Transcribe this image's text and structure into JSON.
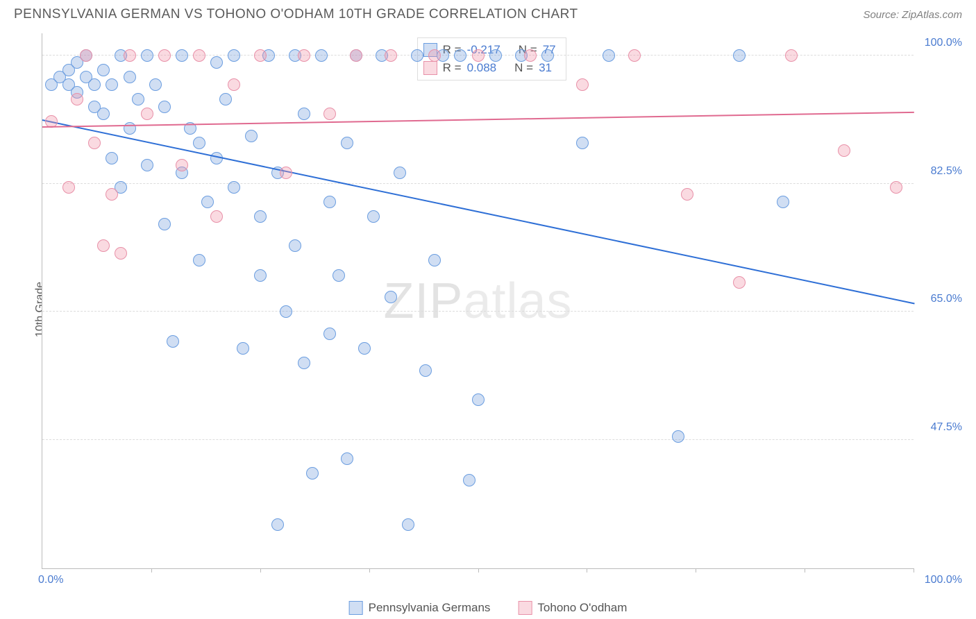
{
  "title": "PENNSYLVANIA GERMAN VS TOHONO O'ODHAM 10TH GRADE CORRELATION CHART",
  "source": "Source: ZipAtlas.com",
  "ylabel": "10th Grade",
  "watermark": {
    "bold": "ZIP",
    "rest": "atlas"
  },
  "chart": {
    "type": "scatter",
    "xlim": [
      0,
      100
    ],
    "ylim": [
      30,
      103
    ],
    "x_axis_label_left": "0.0%",
    "x_axis_label_right": "100.0%",
    "xtick_positions": [
      12.5,
      25,
      37.5,
      50,
      62.5,
      75,
      87.5,
      100
    ],
    "yticks": [
      {
        "v": 100.0,
        "label": "100.0%"
      },
      {
        "v": 82.5,
        "label": "82.5%"
      },
      {
        "v": 65.0,
        "label": "65.0%"
      },
      {
        "v": 47.5,
        "label": "47.5%"
      }
    ],
    "background_color": "#ffffff",
    "grid_color": "#dcdcdc",
    "series": [
      {
        "name": "Pennsylvania Germans",
        "fill": "rgba(120,160,220,0.35)",
        "stroke": "#6a9de0",
        "marker_radius": 9,
        "trend_color": "#2e6fd6",
        "trend": {
          "y_at_x0": 91,
          "y_at_x100": 66
        },
        "R": "-0.217",
        "N": "77",
        "points": [
          [
            1,
            96
          ],
          [
            2,
            97
          ],
          [
            3,
            98
          ],
          [
            3,
            96
          ],
          [
            4,
            99
          ],
          [
            4,
            95
          ],
          [
            5,
            97
          ],
          [
            5,
            100
          ],
          [
            6,
            96
          ],
          [
            6,
            93
          ],
          [
            7,
            98
          ],
          [
            7,
            92
          ],
          [
            8,
            96
          ],
          [
            8,
            86
          ],
          [
            9,
            100
          ],
          [
            9,
            82
          ],
          [
            10,
            97
          ],
          [
            10,
            90
          ],
          [
            11,
            94
          ],
          [
            12,
            100
          ],
          [
            12,
            85
          ],
          [
            13,
            96
          ],
          [
            14,
            93
          ],
          [
            14,
            77
          ],
          [
            15,
            61
          ],
          [
            16,
            100
          ],
          [
            16,
            84
          ],
          [
            17,
            90
          ],
          [
            18,
            88
          ],
          [
            18,
            72
          ],
          [
            19,
            80
          ],
          [
            20,
            99
          ],
          [
            20,
            86
          ],
          [
            21,
            94
          ],
          [
            22,
            100
          ],
          [
            22,
            82
          ],
          [
            23,
            60
          ],
          [
            24,
            89
          ],
          [
            25,
            78
          ],
          [
            25,
            70
          ],
          [
            26,
            100
          ],
          [
            27,
            84
          ],
          [
            27,
            36
          ],
          [
            28,
            65
          ],
          [
            29,
            100
          ],
          [
            29,
            74
          ],
          [
            30,
            92
          ],
          [
            30,
            58
          ],
          [
            31,
            43
          ],
          [
            32,
            100
          ],
          [
            33,
            62
          ],
          [
            33,
            80
          ],
          [
            34,
            70
          ],
          [
            35,
            88
          ],
          [
            35,
            45
          ],
          [
            36,
            100
          ],
          [
            37,
            60
          ],
          [
            38,
            78
          ],
          [
            39,
            100
          ],
          [
            40,
            67
          ],
          [
            41,
            84
          ],
          [
            42,
            36
          ],
          [
            43,
            100
          ],
          [
            44,
            57
          ],
          [
            45,
            72
          ],
          [
            46,
            100
          ],
          [
            48,
            100
          ],
          [
            49,
            42
          ],
          [
            50,
            53
          ],
          [
            52,
            100
          ],
          [
            55,
            100
          ],
          [
            58,
            100
          ],
          [
            62,
            88
          ],
          [
            65,
            100
          ],
          [
            73,
            48
          ],
          [
            80,
            100
          ],
          [
            85,
            80
          ]
        ]
      },
      {
        "name": "Tohono O'odham",
        "fill": "rgba(240,150,170,0.35)",
        "stroke": "#e890a8",
        "marker_radius": 9,
        "trend_color": "#e06a90",
        "trend": {
          "y_at_x0": 90,
          "y_at_x100": 92
        },
        "R": "0.088",
        "N": "31",
        "points": [
          [
            1,
            91
          ],
          [
            3,
            82
          ],
          [
            4,
            94
          ],
          [
            5,
            100
          ],
          [
            6,
            88
          ],
          [
            7,
            74
          ],
          [
            8,
            81
          ],
          [
            9,
            73
          ],
          [
            10,
            100
          ],
          [
            12,
            92
          ],
          [
            14,
            100
          ],
          [
            16,
            85
          ],
          [
            18,
            100
          ],
          [
            20,
            78
          ],
          [
            22,
            96
          ],
          [
            25,
            100
          ],
          [
            28,
            84
          ],
          [
            30,
            100
          ],
          [
            33,
            92
          ],
          [
            36,
            100
          ],
          [
            40,
            100
          ],
          [
            45,
            100
          ],
          [
            50,
            100
          ],
          [
            56,
            100
          ],
          [
            62,
            96
          ],
          [
            68,
            100
          ],
          [
            74,
            81
          ],
          [
            80,
            69
          ],
          [
            86,
            100
          ],
          [
            92,
            87
          ],
          [
            98,
            82
          ]
        ]
      }
    ]
  },
  "legend_top": {
    "rows": [
      {
        "swatch_fill": "rgba(120,160,220,0.35)",
        "swatch_stroke": "#6a9de0",
        "r_label": "R =",
        "r": "-0.217",
        "n_label": "N =",
        "n": "77"
      },
      {
        "swatch_fill": "rgba(240,150,170,0.35)",
        "swatch_stroke": "#e890a8",
        "r_label": "R =",
        "r": "0.088",
        "n_label": "N =",
        "n": "31"
      }
    ]
  },
  "legend_bottom": {
    "items": [
      {
        "swatch_fill": "rgba(120,160,220,0.35)",
        "swatch_stroke": "#6a9de0",
        "label": "Pennsylvania Germans"
      },
      {
        "swatch_fill": "rgba(240,150,170,0.35)",
        "swatch_stroke": "#e890a8",
        "label": "Tohono O'odham"
      }
    ]
  }
}
